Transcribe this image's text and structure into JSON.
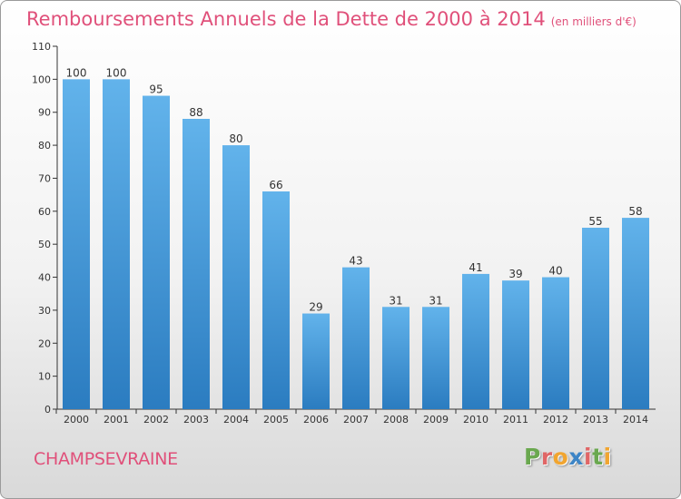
{
  "title": "Remboursements Annuels de la Dette de 2000 à 2014",
  "unit": "(en milliers d'€)",
  "town": "CHAMPSEVRAINE",
  "logo": {
    "text": "Proxiti",
    "colors": [
      "#6aa84f",
      "#e06666",
      "#f1a530",
      "#3d85c6",
      "#e06666",
      "#6aa84f",
      "#f1a530"
    ]
  },
  "colors": {
    "title": "#e0507a",
    "bar_light": "#62b3eb",
    "bar_dark": "#2b7cc0",
    "axis": "#333333"
  },
  "chart_data": {
    "type": "bar",
    "title": "Remboursements Annuels de la Dette de 2000 à 2014",
    "ylabel": "(en milliers d'€)",
    "xlabel": "",
    "categories": [
      "2000",
      "2001",
      "2002",
      "2003",
      "2004",
      "2005",
      "2006",
      "2007",
      "2008",
      "2009",
      "2010",
      "2011",
      "2012",
      "2013",
      "2014"
    ],
    "values": [
      100,
      100,
      95,
      88,
      80,
      66,
      29,
      43,
      31,
      31,
      41,
      39,
      40,
      55,
      58
    ],
    "ylim": [
      0,
      110
    ],
    "yticks": [
      0,
      10,
      20,
      30,
      40,
      50,
      60,
      70,
      80,
      90,
      100,
      110
    ],
    "grid": false,
    "data_labels": true
  }
}
